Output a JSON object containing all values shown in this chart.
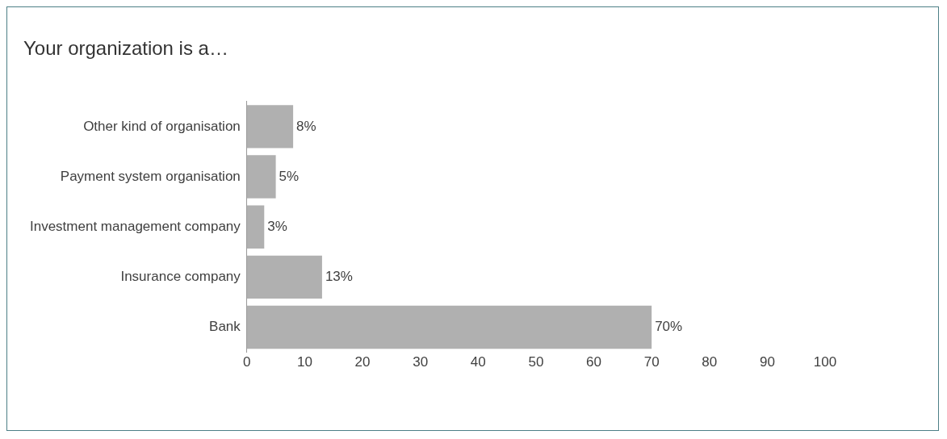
{
  "chart_data": {
    "type": "bar",
    "orientation": "horizontal",
    "title": "Your organization is a…",
    "categories": [
      "Other kind of organisation",
      "Payment system organisation",
      "Investment management company",
      "Insurance company",
      "Bank"
    ],
    "values": [
      8,
      5,
      3,
      13,
      70
    ],
    "value_labels": [
      "8%",
      "5%",
      "3%",
      "13%",
      "70%"
    ],
    "color": "#b0b0b0",
    "xlim": [
      0,
      100
    ],
    "xticks": [
      0,
      10,
      20,
      30,
      40,
      50,
      60,
      70,
      80,
      90,
      100
    ],
    "grid": false,
    "legend": false
  }
}
